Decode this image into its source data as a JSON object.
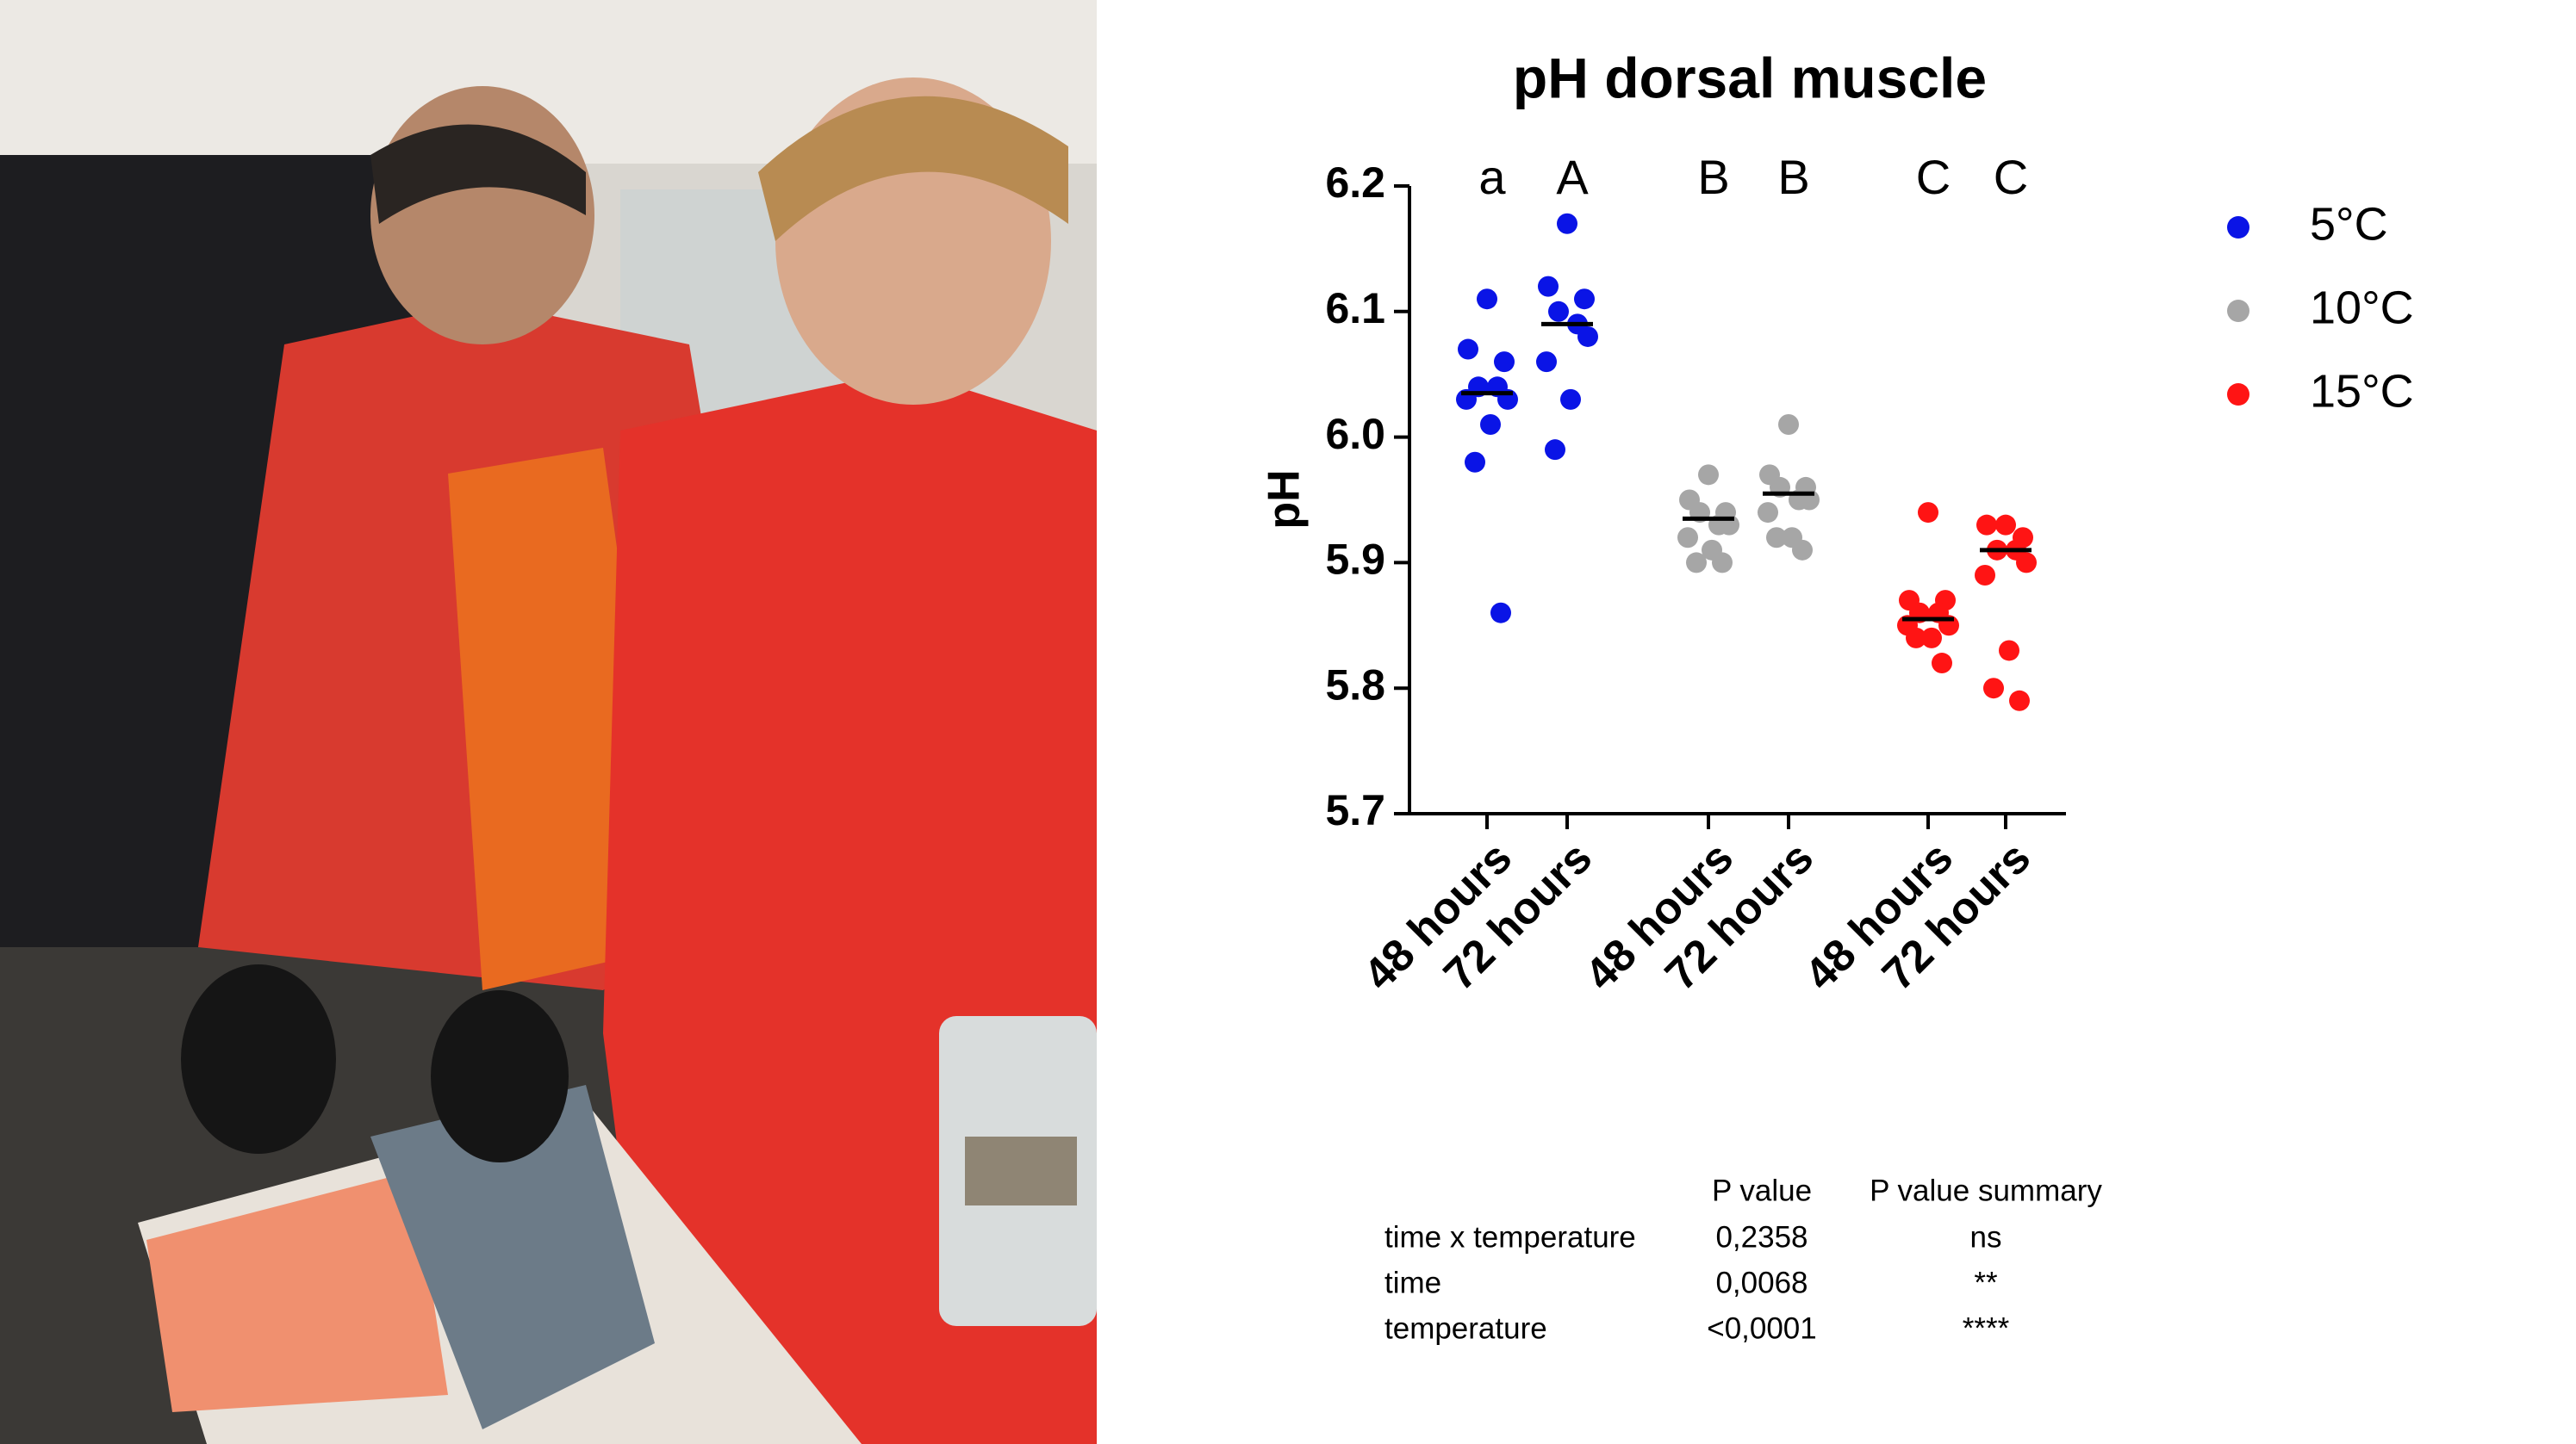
{
  "chart_data": {
    "type": "strip",
    "title": "pH dorsal muscle",
    "y_label": "pH",
    "categories": [
      "48 hours",
      "72 hours",
      "48 hours",
      "72 hours",
      "48 hours",
      "72 hours"
    ],
    "group_labels": [
      "a",
      "A",
      "B",
      "B",
      "C",
      "C"
    ],
    "ylim": [
      5.7,
      6.2
    ],
    "yticks": [
      5.7,
      5.8,
      5.9,
      {
        "value": 6,
        "label": "6.0"
      },
      6.1,
      6.2
    ],
    "series": [
      {
        "name": "5°C",
        "color": "#0a14e6",
        "values": [
          [
            6.11,
            6.07,
            6.06,
            6.04,
            6.04,
            6.03,
            6.03,
            6.01,
            5.98,
            5.86
          ],
          [
            6.17,
            6.12,
            6.11,
            6.1,
            6.09,
            6.08,
            6.06,
            6.03,
            5.99
          ],
          null,
          null,
          null,
          null
        ],
        "medians": [
          6.035,
          6.09,
          null,
          null,
          null,
          null
        ]
      },
      {
        "name": "10°C",
        "color": "#a6a6a6",
        "values": [
          null,
          null,
          [
            5.97,
            5.95,
            5.94,
            5.94,
            5.93,
            5.93,
            5.92,
            5.91,
            5.9,
            5.9
          ],
          [
            6.01,
            5.97,
            5.96,
            5.96,
            5.95,
            5.95,
            5.94,
            5.92,
            5.92,
            5.91
          ],
          null,
          null
        ],
        "medians": [
          null,
          null,
          5.935,
          5.955,
          null,
          null
        ]
      },
      {
        "name": "15°C",
        "color": "#ff1414",
        "values": [
          null,
          null,
          null,
          null,
          [
            5.94,
            5.87,
            5.87,
            5.86,
            5.86,
            5.85,
            5.85,
            5.84,
            5.84,
            5.82
          ],
          [
            5.93,
            5.93,
            5.92,
            5.91,
            5.91,
            5.9,
            5.89,
            5.83,
            5.8,
            5.79
          ]
        ],
        "medians": [
          null,
          null,
          null,
          null,
          5.855,
          5.91
        ]
      }
    ]
  },
  "table": {
    "header": [
      "P value",
      "P value summary"
    ],
    "rows": [
      [
        "time x temperature",
        "0,2358",
        "ns"
      ],
      [
        "time",
        "0,0068",
        "**"
      ],
      [
        "temperature",
        "<0,0001",
        "****"
      ]
    ]
  }
}
